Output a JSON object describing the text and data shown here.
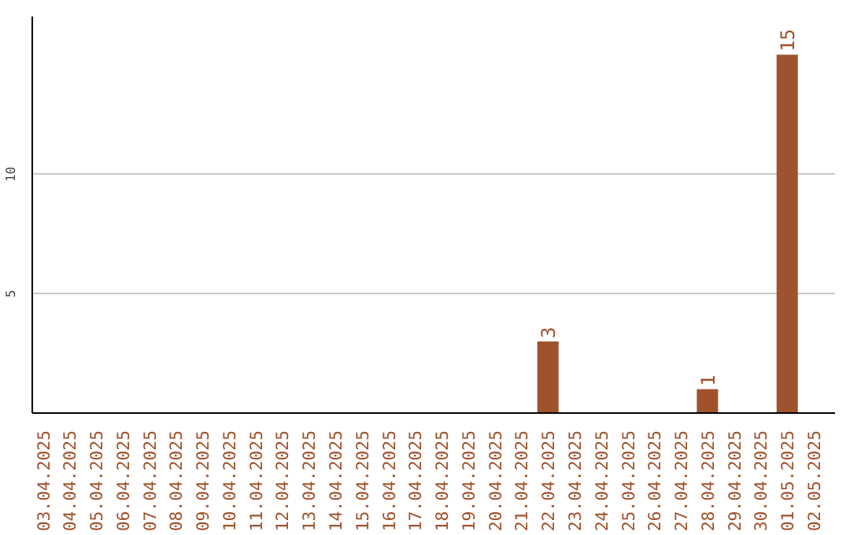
{
  "chart_data": {
    "type": "bar",
    "categories": [
      "03.04.2025",
      "04.04.2025",
      "05.04.2025",
      "06.04.2025",
      "07.04.2025",
      "08.04.2025",
      "09.04.2025",
      "10.04.2025",
      "11.04.2025",
      "12.04.2025",
      "13.04.2025",
      "14.04.2025",
      "15.04.2025",
      "16.04.2025",
      "17.04.2025",
      "18.04.2025",
      "19.04.2025",
      "20.04.2025",
      "21.04.2025",
      "22.04.2025",
      "23.04.2025",
      "24.04.2025",
      "25.04.2025",
      "26.04.2025",
      "27.04.2025",
      "28.04.2025",
      "29.04.2025",
      "30.04.2025",
      "01.05.2025",
      "02.05.2025"
    ],
    "values": [
      0,
      0,
      0,
      0,
      0,
      0,
      0,
      0,
      0,
      0,
      0,
      0,
      0,
      0,
      0,
      0,
      0,
      0,
      0,
      3,
      0,
      0,
      0,
      0,
      0,
      1,
      0,
      0,
      15,
      0
    ],
    "value_labels": [
      null,
      null,
      null,
      null,
      null,
      null,
      null,
      null,
      null,
      null,
      null,
      null,
      null,
      null,
      null,
      null,
      null,
      null,
      null,
      "3",
      null,
      null,
      null,
      null,
      null,
      "1",
      null,
      null,
      "15",
      null
    ],
    "color": "#a0522d",
    "ylim": [
      0,
      16.6
    ],
    "yticks": [
      5,
      10
    ],
    "grid": "y"
  }
}
